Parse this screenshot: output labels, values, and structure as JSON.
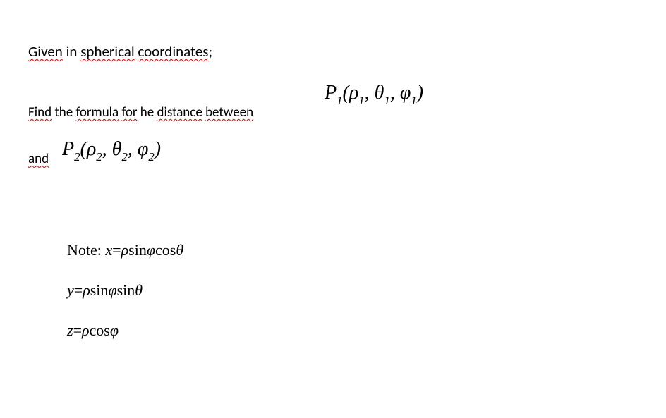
{
  "line1": {
    "w1": "Given",
    "w2": "in",
    "w3": "spherical",
    "w4": "coordinates",
    "tail": ";"
  },
  "line2": {
    "w1": "Find",
    "w2": "the",
    "w3": "formula",
    "w4": "for",
    "w5": "he",
    "w6": "distance",
    "w7": "between"
  },
  "p1": {
    "P": "P",
    "Psub": "1",
    "open": "(",
    "rho": "ρ",
    "rhosub": "1",
    "c1": ", ",
    "theta": "θ",
    "thetasub": "1",
    "c2": ", ",
    "phi": "φ",
    "phisub": "1",
    "close": ")"
  },
  "line3": {
    "w1": "and"
  },
  "p2": {
    "P": "P",
    "Psub": "2",
    "open": "(",
    "rho": "ρ",
    "rhosub": "2",
    "c1": ", ",
    "theta": "θ",
    "thetasub": "2",
    "c2": ", ",
    "phi": "φ",
    "phisub": "2",
    "close": ")"
  },
  "notes": {
    "noteLabel": "Note:  ",
    "eq1_lhs": "x",
    "eq1_eq": "=",
    "eq1_rhs_a": "ρ",
    "eq1_rhs_b": "sin",
    "eq1_rhs_c": "φ",
    "eq1_rhs_d": "cos",
    "eq1_rhs_e": "θ",
    "eq2_lhs": "y",
    "eq2_eq": "=",
    "eq2_rhs_a": "ρ",
    "eq2_rhs_b": "sin",
    "eq2_rhs_c": "φ",
    "eq2_rhs_d": "sin",
    "eq2_rhs_e": "θ",
    "eq3_lhs": "z",
    "eq3_eq": "=",
    "eq3_rhs_a": "ρ",
    "eq3_rhs_b": "cos",
    "eq3_rhs_c": "φ"
  },
  "style": {
    "bg": "#ffffff",
    "text": "#000000",
    "spell_underline": "#d20000",
    "body_font": "Calibri, Arial, sans-serif",
    "math_font": "Cambria Math, Times New Roman, serif",
    "body_size_pt": 15,
    "math_size_pt": 21,
    "notes_size_pt": 16
  }
}
